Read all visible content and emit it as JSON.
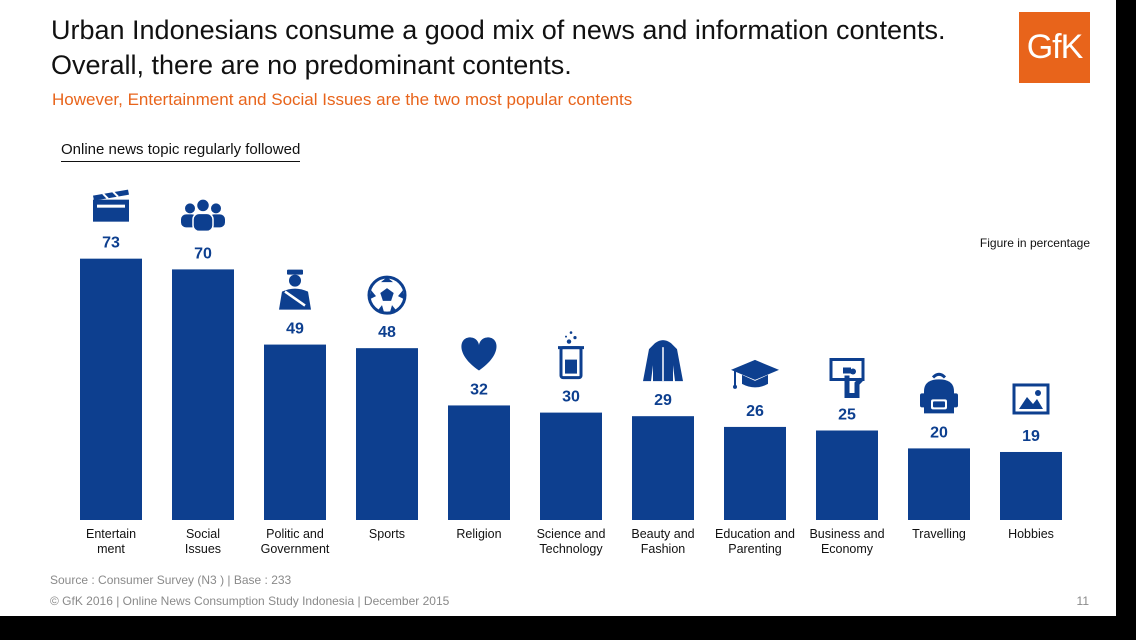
{
  "header": {
    "title_lines": [
      "Urban Indonesians consume a good mix of news and information contents.",
      "Overall, there are no predominant contents."
    ],
    "subtitle": "However, Entertainment and Social Issues are the two most popular contents",
    "logo_text": "GfK"
  },
  "chart_data": {
    "type": "bar",
    "title": "Online news topic regularly followed",
    "note": "Figure in percentage",
    "categories": [
      [
        "Entertain",
        "ment"
      ],
      [
        "Social",
        "Issues"
      ],
      [
        "Politic and",
        "Government"
      ],
      [
        "Sports"
      ],
      [
        "Religion"
      ],
      [
        "Science and",
        "Technology"
      ],
      [
        "Beauty and",
        "Fashion"
      ],
      [
        "Education and",
        "Parenting"
      ],
      [
        "Business and",
        "Economy"
      ],
      [
        "Travelling"
      ],
      [
        "Hobbies"
      ]
    ],
    "values": [
      73,
      70,
      49,
      48,
      32,
      30,
      29,
      26,
      25,
      20,
      19
    ],
    "icons": [
      "clapperboard-icon",
      "people-group-icon",
      "policeman-icon",
      "soccer-ball-icon",
      "heart-icon",
      "beaker-icon",
      "jacket-icon",
      "graduation-cap-icon",
      "presentation-icon",
      "backpack-icon",
      "picture-icon"
    ],
    "bar_color": "#0d3f8f",
    "ylim": [
      0,
      100
    ],
    "grid": false,
    "legend": "none"
  },
  "footer": {
    "source": "Source : Consumer Survey (N3 ) | Base : 233",
    "copyright": "© GfK 2016 | Online News Consumption Study Indonesia | December 2015",
    "page_number": "11"
  },
  "colors": {
    "accent": "#e8641b",
    "bar": "#0d3f8f",
    "text": "#111111",
    "muted": "#8a8a8a"
  }
}
